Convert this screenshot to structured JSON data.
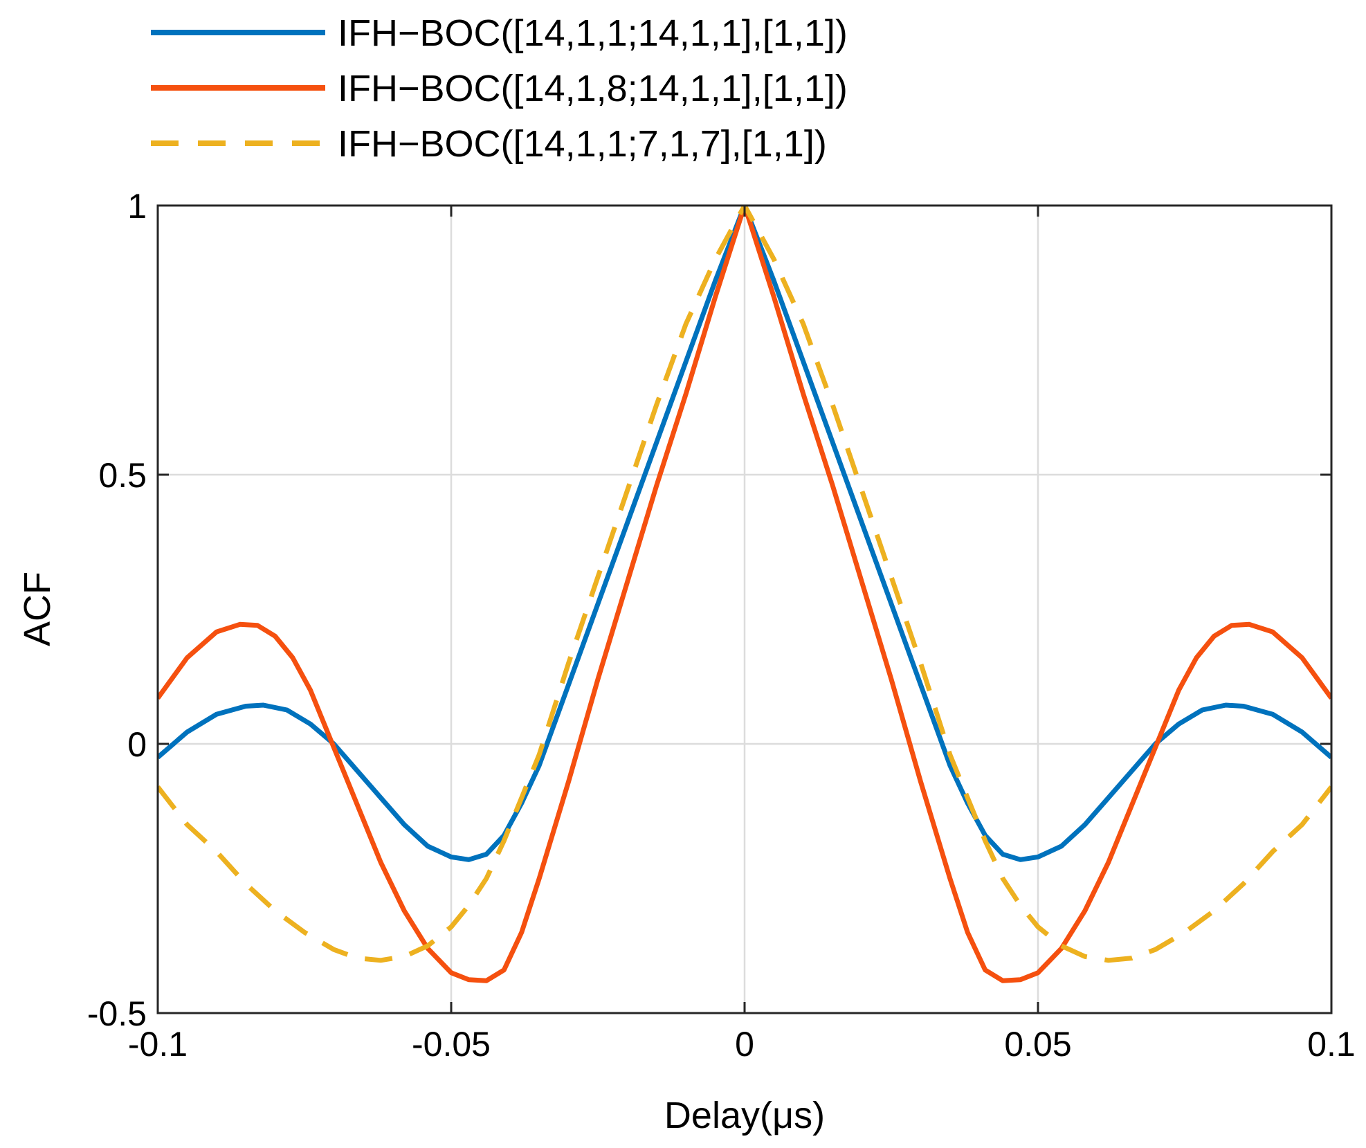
{
  "chart_data": {
    "type": "line",
    "title": "",
    "xlabel": "Delay(μs)",
    "ylabel": "ACF",
    "xlim": [
      -0.1,
      0.1
    ],
    "ylim": [
      -0.5,
      1
    ],
    "grid": true,
    "legend_position": "top",
    "xticks": [
      -0.1,
      -0.05,
      0,
      0.05,
      0.1
    ],
    "xtick_labels": [
      "-0.1",
      "-0.05",
      "0",
      "0.05",
      "0.1"
    ],
    "yticks": [
      -0.5,
      0,
      0.5,
      1
    ],
    "ytick_labels": [
      "-0.5",
      "0",
      "0.5",
      "1"
    ],
    "series": [
      {
        "name": "IFH−BOC([14,1,1;14,1,1],[1,1])",
        "color": "#0072BD",
        "style": "solid",
        "x": [
          -0.1,
          -0.095,
          -0.09,
          -0.085,
          -0.082,
          -0.078,
          -0.074,
          -0.07,
          -0.066,
          -0.062,
          -0.058,
          -0.054,
          -0.05,
          -0.047,
          -0.044,
          -0.041,
          -0.038,
          -0.035,
          -0.03,
          -0.025,
          -0.02,
          -0.015,
          -0.01,
          -0.005,
          0,
          0.005,
          0.01,
          0.015,
          0.02,
          0.025,
          0.03,
          0.035,
          0.038,
          0.041,
          0.044,
          0.047,
          0.05,
          0.054,
          0.058,
          0.062,
          0.066,
          0.07,
          0.074,
          0.078,
          0.082,
          0.085,
          0.09,
          0.095,
          0.1
        ],
        "y": [
          -0.025,
          0.022,
          0.055,
          0.07,
          0.072,
          0.063,
          0.037,
          0.0,
          -0.05,
          -0.1,
          -0.15,
          -0.19,
          -0.21,
          -0.215,
          -0.205,
          -0.17,
          -0.11,
          -0.04,
          0.11,
          0.26,
          0.41,
          0.56,
          0.71,
          0.86,
          1.0,
          0.86,
          0.71,
          0.56,
          0.41,
          0.26,
          0.11,
          -0.04,
          -0.11,
          -0.17,
          -0.205,
          -0.215,
          -0.21,
          -0.19,
          -0.15,
          -0.1,
          -0.05,
          0.0,
          0.037,
          0.063,
          0.072,
          0.07,
          0.055,
          0.022,
          -0.025
        ]
      },
      {
        "name": "IFH−BOC([14,1,8;14,1,1],[1,1])",
        "color": "#F5500F",
        "style": "solid",
        "x": [
          -0.1,
          -0.095,
          -0.09,
          -0.086,
          -0.083,
          -0.08,
          -0.077,
          -0.074,
          -0.071,
          -0.068,
          -0.065,
          -0.062,
          -0.058,
          -0.054,
          -0.05,
          -0.047,
          -0.044,
          -0.041,
          -0.038,
          -0.035,
          -0.03,
          -0.025,
          -0.02,
          -0.015,
          -0.01,
          -0.005,
          0,
          0.005,
          0.01,
          0.015,
          0.02,
          0.025,
          0.03,
          0.035,
          0.038,
          0.041,
          0.044,
          0.047,
          0.05,
          0.054,
          0.058,
          0.062,
          0.065,
          0.068,
          0.071,
          0.074,
          0.077,
          0.08,
          0.083,
          0.086,
          0.09,
          0.095,
          0.1
        ],
        "y": [
          0.085,
          0.16,
          0.208,
          0.222,
          0.22,
          0.2,
          0.16,
          0.1,
          0.02,
          -0.06,
          -0.14,
          -0.22,
          -0.31,
          -0.38,
          -0.425,
          -0.438,
          -0.44,
          -0.42,
          -0.35,
          -0.25,
          -0.07,
          0.12,
          0.3,
          0.48,
          0.65,
          0.83,
          1.0,
          0.83,
          0.65,
          0.48,
          0.3,
          0.12,
          -0.07,
          -0.25,
          -0.35,
          -0.42,
          -0.44,
          -0.438,
          -0.425,
          -0.38,
          -0.31,
          -0.22,
          -0.14,
          -0.06,
          0.02,
          0.1,
          0.16,
          0.2,
          0.22,
          0.222,
          0.208,
          0.16,
          0.085
        ]
      },
      {
        "name": "IFH−BOC([14,1,1;7,1,7],[1,1])",
        "color": "#EDB120",
        "style": "dashed",
        "x": [
          -0.1,
          -0.095,
          -0.09,
          -0.085,
          -0.08,
          -0.075,
          -0.07,
          -0.066,
          -0.062,
          -0.058,
          -0.054,
          -0.05,
          -0.047,
          -0.044,
          -0.041,
          -0.038,
          -0.035,
          -0.03,
          -0.025,
          -0.02,
          -0.015,
          -0.01,
          -0.005,
          0,
          0.005,
          0.01,
          0.015,
          0.02,
          0.025,
          0.03,
          0.035,
          0.038,
          0.041,
          0.044,
          0.047,
          0.05,
          0.054,
          0.058,
          0.062,
          0.066,
          0.07,
          0.075,
          0.08,
          0.085,
          0.09,
          0.095,
          0.1
        ],
        "y": [
          -0.08,
          -0.15,
          -0.2,
          -0.26,
          -0.31,
          -0.35,
          -0.382,
          -0.398,
          -0.402,
          -0.395,
          -0.375,
          -0.34,
          -0.3,
          -0.25,
          -0.18,
          -0.1,
          -0.02,
          0.15,
          0.31,
          0.47,
          0.63,
          0.78,
          0.9,
          1.0,
          0.9,
          0.78,
          0.63,
          0.47,
          0.31,
          0.15,
          -0.02,
          -0.1,
          -0.18,
          -0.25,
          -0.3,
          -0.34,
          -0.375,
          -0.395,
          -0.402,
          -0.398,
          -0.382,
          -0.35,
          -0.31,
          -0.26,
          -0.2,
          -0.15,
          -0.08
        ]
      }
    ]
  }
}
